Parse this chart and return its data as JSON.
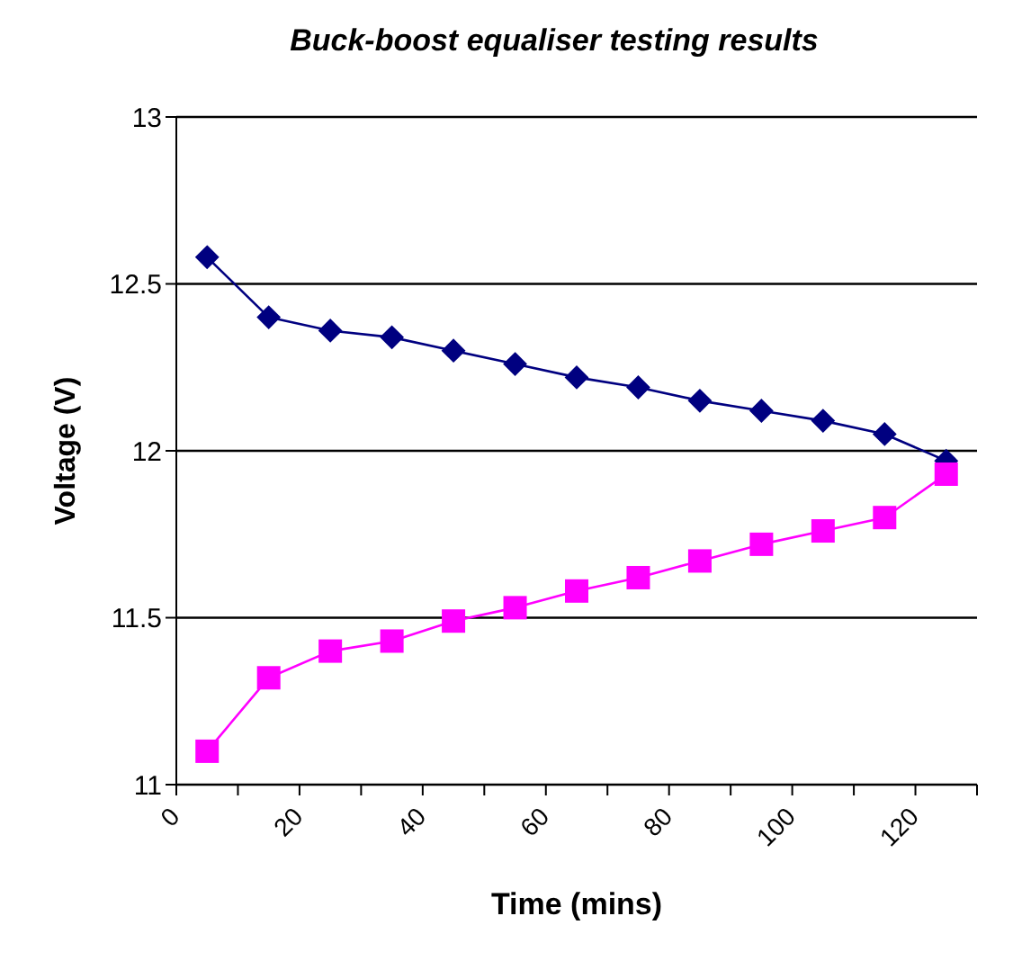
{
  "chart_data": {
    "type": "line",
    "title": "Buck-boost equaliser testing results",
    "xlabel": "Time (mins)",
    "ylabel": "Voltage (V)",
    "x": [
      5,
      15,
      25,
      35,
      45,
      55,
      65,
      75,
      85,
      95,
      105,
      115,
      125
    ],
    "series": [
      {
        "color": "#000080",
        "marker": "diamond",
        "values": [
          12.58,
          12.4,
          12.36,
          12.34,
          12.3,
          12.26,
          12.22,
          12.19,
          12.15,
          12.12,
          12.09,
          12.05,
          11.97
        ]
      },
      {
        "color": "#ff00ff",
        "marker": "square",
        "values": [
          11.1,
          11.32,
          11.4,
          11.43,
          11.49,
          11.53,
          11.58,
          11.62,
          11.67,
          11.72,
          11.76,
          11.8,
          11.93
        ]
      }
    ],
    "xlim": [
      0,
      130
    ],
    "xticks": [
      0,
      {
        "value": 10,
        "label": null
      },
      20,
      {
        "value": 30,
        "label": null
      },
      40,
      {
        "value": 50,
        "label": null
      },
      60,
      {
        "value": 70,
        "label": null
      },
      80,
      {
        "value": 90,
        "label": null
      },
      100,
      {
        "value": 110,
        "label": null
      },
      120,
      {
        "value": 130,
        "label": null
      }
    ],
    "ylim": [
      11,
      13
    ],
    "yticks": [
      11,
      11.5,
      12,
      12.5,
      13
    ],
    "grid": "y",
    "legend": false
  }
}
